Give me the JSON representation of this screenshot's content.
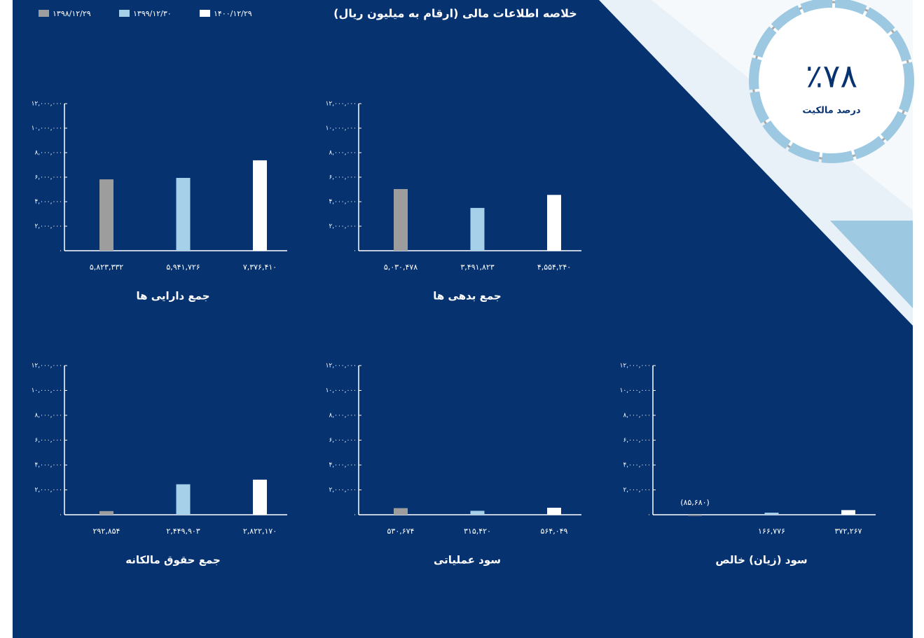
{
  "header": {
    "title": "خلاصه اطلاعات مالی (ارقام به میلیون ریال)"
  },
  "ownership": {
    "value": "٪۷۸",
    "label": "درصد مالکیت"
  },
  "legend": [
    {
      "name": "۱۳۹۸/۱۲/۲۹",
      "color": "#9d9d9d"
    },
    {
      "name": "۱۳۹۹/۱۲/۳۰",
      "color": "#a6cfe9"
    },
    {
      "name": "۱۴۰۰/۱۲/۲۹",
      "color": "#ffffff"
    }
  ],
  "chart_data": [
    {
      "type": "bar",
      "title": "جمع دارایی ها",
      "values": [
        5823332,
        5941726,
        7376410
      ],
      "value_labels": [
        "۵,۸۲۳,۳۳۲",
        "۵,۹۴۱,۷۲۶",
        "۷,۳۷۶,۴۱۰"
      ],
      "ylim": [
        0,
        12000000
      ],
      "yticks": [
        {
          "value": 0,
          "label": "۰"
        },
        {
          "value": 2000000,
          "label": "۲,۰۰۰,۰۰۰"
        },
        {
          "value": 4000000,
          "label": "۴,۰۰۰,۰۰۰"
        },
        {
          "value": 6000000,
          "label": "۶,۰۰۰,۰۰۰"
        },
        {
          "value": 8000000,
          "label": "۸,۰۰۰,۰۰۰"
        },
        {
          "value": 10000000,
          "label": "۱۰,۰۰۰,۰۰۰"
        },
        {
          "value": 12000000,
          "label": "۱۲,۰۰۰,۰۰۰"
        }
      ]
    },
    {
      "type": "bar",
      "title": "جمع بدهی ها",
      "values": [
        5030478,
        3491823,
        4554240
      ],
      "value_labels": [
        "۵,۰۳۰,۴۷۸",
        "۳,۴۹۱,۸۲۳",
        "۴,۵۵۴,۲۴۰"
      ],
      "ylim": [
        0,
        12000000
      ],
      "yticks": [
        {
          "value": 0,
          "label": "۰"
        },
        {
          "value": 2000000,
          "label": "۲,۰۰۰,۰۰۰"
        },
        {
          "value": 4000000,
          "label": "۴,۰۰۰,۰۰۰"
        },
        {
          "value": 6000000,
          "label": "۶,۰۰۰,۰۰۰"
        },
        {
          "value": 8000000,
          "label": "۸,۰۰۰,۰۰۰"
        },
        {
          "value": 10000000,
          "label": "۱۰,۰۰۰,۰۰۰"
        },
        {
          "value": 12000000,
          "label": "۱۲,۰۰۰,۰۰۰"
        }
      ]
    },
    {
      "type": "bar",
      "title": "جمع حقوق مالکانه",
      "values": [
        292854,
        2449903,
        2822170
      ],
      "value_labels": [
        "۲۹۲,۸۵۴",
        "۲,۴۴۹,۹۰۳",
        "۲,۸۲۲,۱۷۰"
      ],
      "ylim": [
        0,
        12000000
      ],
      "yticks": [
        {
          "value": 0,
          "label": "۰"
        },
        {
          "value": 2000000,
          "label": "۲,۰۰۰,۰۰۰"
        },
        {
          "value": 4000000,
          "label": "۴,۰۰۰,۰۰۰"
        },
        {
          "value": 6000000,
          "label": "۶,۰۰۰,۰۰۰"
        },
        {
          "value": 8000000,
          "label": "۸,۰۰۰,۰۰۰"
        },
        {
          "value": 10000000,
          "label": "۱۰,۰۰۰,۰۰۰"
        },
        {
          "value": 12000000,
          "label": "۱۲,۰۰۰,۰۰۰"
        }
      ]
    },
    {
      "type": "bar",
      "title": "سود عملیاتی",
      "values": [
        530674,
        315420,
        564049
      ],
      "value_labels": [
        "۵۳۰,۶۷۴",
        "۳۱۵,۴۲۰",
        "۵۶۴,۰۴۹"
      ],
      "ylim": [
        0,
        12000000
      ],
      "yticks": [
        {
          "value": 0,
          "label": "۰"
        },
        {
          "value": 2000000,
          "label": "۲,۰۰۰,۰۰۰"
        },
        {
          "value": 4000000,
          "label": "۴,۰۰۰,۰۰۰"
        },
        {
          "value": 6000000,
          "label": "۶,۰۰۰,۰۰۰"
        },
        {
          "value": 8000000,
          "label": "۸,۰۰۰,۰۰۰"
        },
        {
          "value": 10000000,
          "label": "۱۰,۰۰۰,۰۰۰"
        },
        {
          "value": 12000000,
          "label": "۱۲,۰۰۰,۰۰۰"
        }
      ]
    },
    {
      "type": "bar",
      "title": "سود (زیان) خالص",
      "values": [
        -85680,
        166776,
        372267
      ],
      "value_labels": [
        "(۸۵,۶۸۰)",
        "۱۶۶,۷۷۶",
        "۳۷۲,۲۶۷"
      ],
      "ylim": [
        0,
        12000000
      ],
      "yticks": [
        {
          "value": 0,
          "label": "۰"
        },
        {
          "value": 2000000,
          "label": "۲,۰۰۰,۰۰۰"
        },
        {
          "value": 4000000,
          "label": "۴,۰۰۰,۰۰۰"
        },
        {
          "value": 6000000,
          "label": "۶,۰۰۰,۰۰۰"
        },
        {
          "value": 8000000,
          "label": "۸,۰۰۰,۰۰۰"
        },
        {
          "value": 10000000,
          "label": "۱۰,۰۰۰,۰۰۰"
        },
        {
          "value": 12000000,
          "label": "۱۲,۰۰۰,۰۰۰"
        }
      ]
    }
  ]
}
